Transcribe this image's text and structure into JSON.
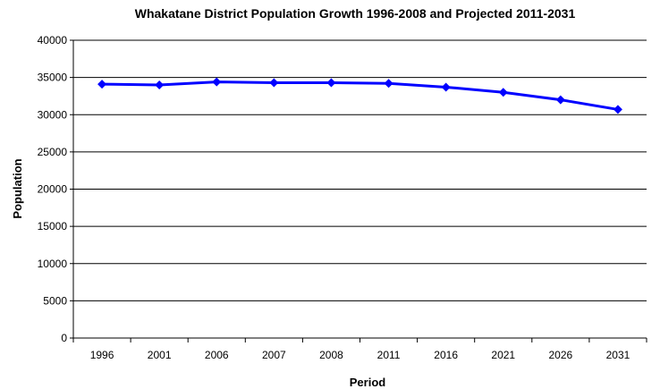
{
  "chart_data": {
    "type": "line",
    "title": "Whakatane District Population Growth 1996-2008 and Projected 2011-2031",
    "xlabel": "Period",
    "ylabel": "Population",
    "categories": [
      "1996",
      "2001",
      "2006",
      "2007",
      "2008",
      "2011",
      "2016",
      "2021",
      "2026",
      "2031"
    ],
    "series": [
      {
        "values": [
          34100,
          34000,
          34400,
          34300,
          34300,
          34200,
          33700,
          33000,
          32000,
          30700
        ]
      }
    ],
    "ylim": [
      0,
      40000
    ],
    "yticks": [
      "0",
      "5000",
      "10000",
      "15000",
      "20000",
      "25000",
      "30000",
      "35000",
      "40000"
    ],
    "grid": "horizontal",
    "legend": "none",
    "colors": {
      "series": "#0000FF",
      "grid": "#000000",
      "axis": "#000000"
    }
  }
}
